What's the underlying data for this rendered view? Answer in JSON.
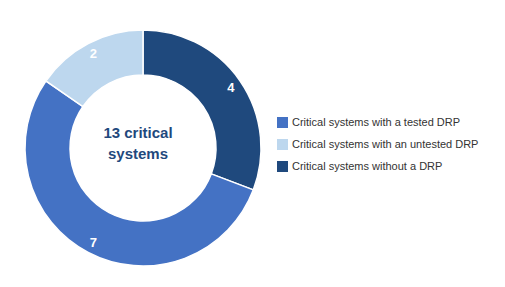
{
  "chart_data": {
    "type": "donut",
    "categories": [
      "Critical systems without a DRP",
      "Critical systems with a tested DRP",
      "Critical systems with an untested DRP"
    ],
    "values": [
      4,
      7,
      2
    ],
    "colors": [
      "#1F497D",
      "#4472C4",
      "#BDD7EE"
    ],
    "data_labels": true,
    "annotations": [
      "13 critical",
      "systems"
    ],
    "legend": "right"
  }
}
